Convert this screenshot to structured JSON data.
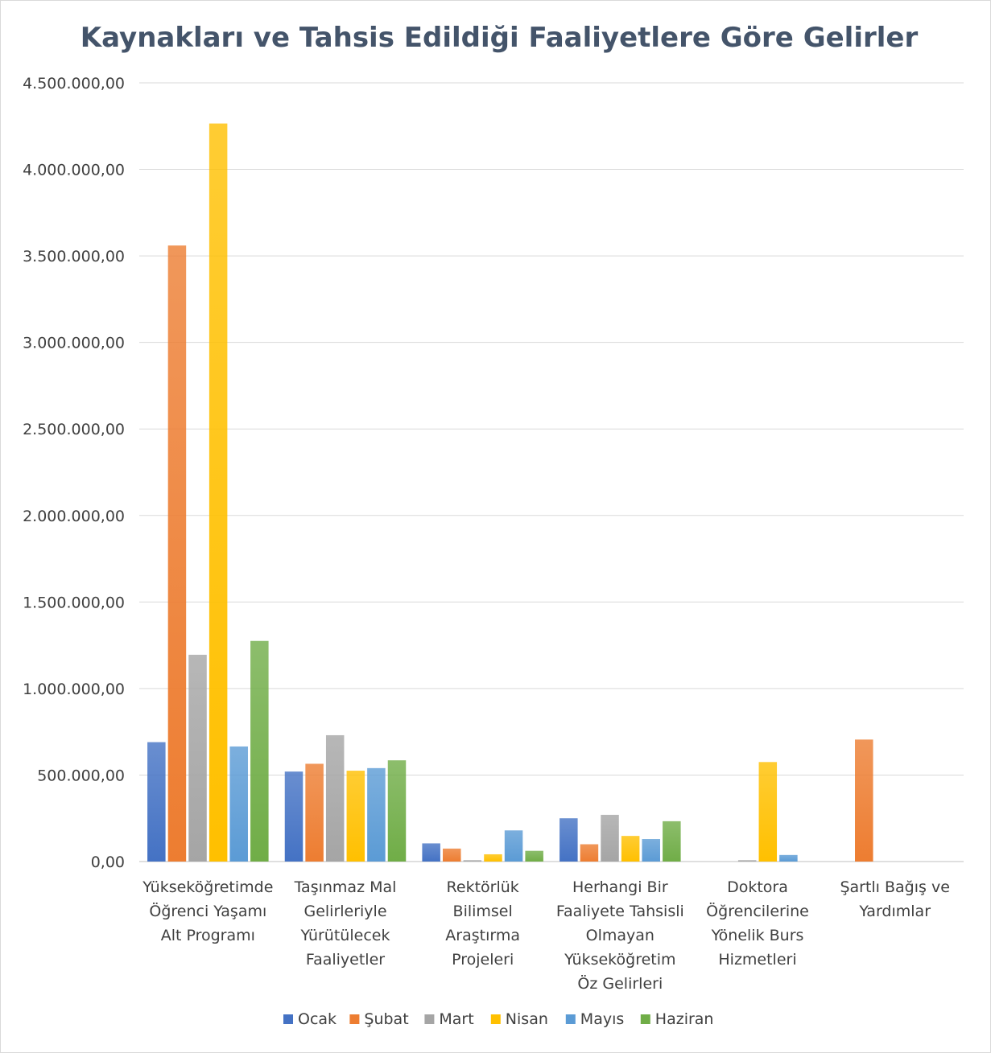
{
  "chart_data": {
    "type": "bar",
    "title": "Kaynakları ve Tahsis Edildiği Faaliyetlere Göre Gelirler",
    "xlabel": "",
    "ylabel": "",
    "ylim": [
      0,
      4500000
    ],
    "y_ticks": [
      0,
      500000,
      1000000,
      1500000,
      2000000,
      2500000,
      3000000,
      3500000,
      4000000,
      4500000
    ],
    "y_tick_labels": [
      "0,00",
      "500.000,00",
      "1.000.000,00",
      "1.500.000,00",
      "2.000.000,00",
      "2.500.000,00",
      "3.000.000,00",
      "3.500.000,00",
      "4.000.000,00",
      "4.500.000,00"
    ],
    "grid": true,
    "legend_position": "bottom",
    "categories": [
      [
        "Yükseköğretimde",
        "Öğrenci Yaşamı",
        "Alt Programı"
      ],
      [
        "Taşınmaz Mal",
        "Gelirleriyle",
        "Yürütülecek",
        "Faaliyetler"
      ],
      [
        "Rektörlük",
        "Bilimsel",
        "Araştırma",
        "Projeleri"
      ],
      [
        "Herhangi Bir",
        "Faaliyete Tahsisli",
        "Olmayan",
        "Yükseköğretim",
        "Öz Gelirleri"
      ],
      [
        "Doktora",
        "Öğrencilerine",
        "Yönelik Burs",
        "Hizmetleri"
      ],
      [
        "Şartlı Bağış ve",
        "Yardımlar"
      ]
    ],
    "series": [
      {
        "name": "Ocak",
        "color": "#4472c4",
        "values": [
          690000,
          520000,
          105000,
          250000,
          0,
          0
        ]
      },
      {
        "name": "Şubat",
        "color": "#ed7d31",
        "values": [
          3560000,
          565000,
          75000,
          100000,
          0,
          705000
        ]
      },
      {
        "name": "Mart",
        "color": "#a5a5a5",
        "values": [
          1195000,
          730000,
          8000,
          270000,
          8000,
          0
        ]
      },
      {
        "name": "Nisan",
        "color": "#ffc000",
        "values": [
          4265000,
          525000,
          42000,
          148000,
          575000,
          0
        ]
      },
      {
        "name": "Mayıs",
        "color": "#5b9bd5",
        "values": [
          665000,
          540000,
          180000,
          130000,
          38000,
          0
        ]
      },
      {
        "name": "Haziran",
        "color": "#70ad47",
        "values": [
          1275000,
          585000,
          62000,
          233000,
          0,
          0
        ]
      }
    ]
  }
}
